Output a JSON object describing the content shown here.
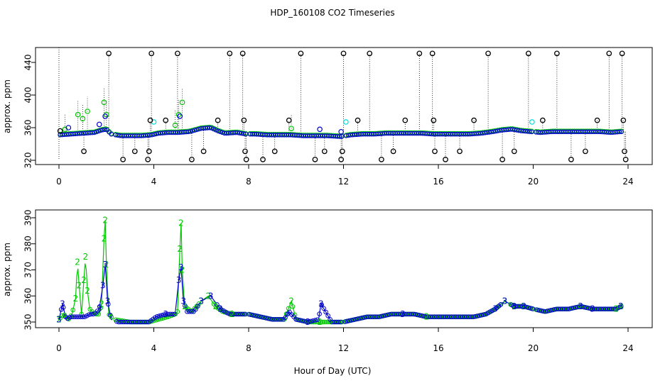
{
  "page": {
    "title": "HDP_160108  CO2 Timeseries",
    "xlabel": "Hour of Day (UTC)"
  },
  "chart_data": [
    {
      "type": "scatter",
      "ylabel": "approx. ppm",
      "xlim": [
        0,
        24
      ],
      "ylim": [
        320,
        450
      ],
      "xticks": [
        0,
        4,
        8,
        12,
        16,
        20,
        24
      ],
      "yticks": [
        320,
        360,
        400,
        440
      ],
      "grid": false,
      "legend": "none",
      "colors": {
        "sensor_1": "#000000",
        "sensor_2": "#00c800",
        "sensor_3": "#0000cc",
        "sensor_4": "#00e0e0"
      },
      "baseline": {
        "x": [
          0.0,
          0.5,
          1.0,
          1.5,
          1.8,
          2.0,
          2.2,
          2.6,
          3.0,
          3.5,
          3.9,
          4.2,
          4.6,
          5.0,
          5.5,
          6.0,
          6.4,
          6.7,
          7.0,
          7.5,
          7.9,
          8.3,
          8.8,
          9.3,
          9.8,
          10.3,
          10.8,
          11.3,
          11.9,
          12.3,
          12.8,
          13.3,
          13.8,
          14.3,
          14.8,
          15.3,
          15.8,
          16.3,
          16.8,
          17.3,
          17.8,
          18.3,
          18.7,
          19.1,
          19.5,
          19.9,
          20.3,
          20.8,
          21.3,
          21.8,
          22.3,
          22.8,
          23.3,
          23.7
        ],
        "y": [
          351,
          352,
          353,
          354,
          357,
          358,
          352,
          350,
          350,
          350,
          351,
          353,
          354,
          354,
          355,
          359,
          360,
          356,
          353,
          354,
          352,
          352,
          351,
          351,
          351,
          350,
          350,
          350,
          349,
          351,
          352,
          352,
          353,
          353,
          353,
          353,
          352,
          352,
          352,
          352,
          353,
          355,
          357,
          358,
          356,
          355,
          354,
          355,
          355,
          355,
          355,
          355,
          354,
          355
        ]
      },
      "sensor_1_points": {
        "x": [
          0.05,
          1.05,
          2.1,
          2.7,
          3.2,
          3.75,
          3.8,
          3.85,
          3.9,
          4.5,
          5.0,
          5.6,
          6.1,
          6.7,
          7.2,
          7.75,
          7.8,
          7.85,
          7.9,
          8.6,
          9.1,
          9.7,
          10.2,
          10.8,
          11.2,
          11.9,
          11.95,
          12.0,
          12.6,
          13.1,
          13.6,
          14.1,
          14.6,
          15.2,
          15.75,
          15.8,
          15.85,
          16.3,
          16.9,
          17.5,
          18.1,
          18.7,
          19.2,
          19.8,
          20.4,
          21.0,
          21.6,
          22.2,
          22.7,
          23.2,
          23.75,
          23.8,
          23.85,
          23.9
        ],
        "y": [
          356,
          331,
          451,
          321,
          331,
          321,
          331,
          369,
          451,
          369,
          451,
          321,
          331,
          369,
          451,
          451,
          369,
          331,
          321,
          321,
          331,
          369,
          451,
          321,
          331,
          321,
          331,
          451,
          369,
          451,
          321,
          331,
          369,
          451,
          451,
          369,
          331,
          321,
          331,
          369,
          451,
          321,
          331,
          451,
          369,
          451,
          321,
          331,
          369,
          451,
          451,
          369,
          331,
          321
        ]
      },
      "sensor_2_points": {
        "x": [
          0.25,
          0.8,
          1.0,
          1.2,
          1.9,
          2.0,
          4.9,
          5.05,
          5.2,
          9.8
        ],
        "y": [
          358,
          376,
          371,
          380,
          391,
          376,
          363,
          376,
          391,
          359
        ]
      },
      "sensor_3_points": {
        "x": [
          0.4,
          1.7,
          1.95,
          5.1,
          11.0,
          11.9
        ],
        "y": [
          360,
          364,
          374,
          374,
          358,
          355
        ]
      },
      "sensor_4_points": {
        "x": [
          4.0,
          12.1,
          19.95
        ],
        "y": [
          367,
          367,
          367
        ]
      }
    },
    {
      "type": "line",
      "ylabel": "approx. ppm",
      "xlim": [
        0,
        24
      ],
      "ylim": [
        348,
        392
      ],
      "xticks": [
        0,
        4,
        8,
        12,
        16,
        20,
        24
      ],
      "yticks": [
        350,
        360,
        370,
        380,
        390
      ],
      "grid": false,
      "legend": "none",
      "colors": {
        "sensor_2": "#00c800",
        "sensor_3": "#0000cc"
      },
      "series": [
        {
          "marker_label": "2",
          "x": [
            0.0,
            0.2,
            0.4,
            0.55,
            0.7,
            0.78,
            0.85,
            0.95,
            1.05,
            1.12,
            1.2,
            1.3,
            1.4,
            1.55,
            1.7,
            1.8,
            1.9,
            1.95,
            2.0,
            2.1,
            2.3,
            3.0,
            3.8,
            4.2,
            4.6,
            4.9,
            5.0,
            5.1,
            5.15,
            5.2,
            5.3,
            5.6,
            6.0,
            6.3,
            6.6,
            6.9,
            7.3,
            7.6,
            8.0,
            8.5,
            9.0,
            9.5,
            9.8,
            10.0,
            10.5,
            11.0,
            11.5,
            12.0,
            12.5,
            13.0,
            13.5,
            14.0,
            14.5,
            15.0,
            15.5,
            15.8,
            16.0,
            16.5,
            17.0,
            17.5,
            18.0,
            18.4,
            18.8,
            19.2,
            19.6,
            20.0,
            20.5,
            21.0,
            21.5,
            22.0,
            22.5,
            23.0,
            23.5,
            23.7
          ],
          "y": [
            351,
            353,
            351,
            353,
            359,
            373,
            364,
            353,
            366,
            375,
            362,
            355,
            354,
            353,
            353,
            357,
            382,
            389,
            372,
            353,
            351,
            350,
            350,
            351,
            352,
            353,
            354,
            378,
            388,
            370,
            356,
            354,
            358,
            360,
            356,
            354,
            353,
            353,
            353,
            352,
            351,
            351,
            358,
            351,
            350,
            350,
            350,
            350,
            351,
            352,
            352,
            353,
            353,
            353,
            352,
            352,
            352,
            352,
            352,
            352,
            353,
            355,
            358,
            356,
            356,
            355,
            354,
            355,
            355,
            356,
            355,
            355,
            355,
            356
          ]
        },
        {
          "marker_label": "3",
          "x": [
            0.0,
            0.15,
            0.3,
            0.5,
            0.7,
            0.9,
            1.1,
            1.3,
            1.5,
            1.7,
            1.85,
            1.95,
            2.05,
            2.2,
            2.5,
            3.0,
            3.8,
            4.1,
            4.5,
            4.9,
            5.05,
            5.15,
            5.25,
            5.4,
            5.7,
            6.0,
            6.4,
            6.8,
            7.2,
            7.6,
            8.0,
            8.5,
            9.0,
            9.5,
            9.7,
            10.0,
            10.5,
            10.95,
            11.05,
            11.5,
            12.0,
            12.5,
            13.0,
            13.5,
            14.0,
            14.5,
            15.0,
            15.5,
            15.8,
            16.0,
            16.5,
            17.0,
            17.5,
            18.0,
            18.4,
            18.8,
            19.2,
            19.6,
            20.0,
            20.5,
            21.0,
            21.5,
            22.0,
            22.5,
            23.0,
            23.5,
            23.7
          ],
          "y": [
            351,
            357,
            351,
            352,
            352,
            352,
            352,
            353,
            353,
            355,
            364,
            372,
            358,
            351,
            350,
            350,
            350,
            352,
            353,
            353,
            366,
            371,
            358,
            354,
            354,
            358,
            360,
            355,
            353,
            353,
            353,
            352,
            351,
            351,
            354,
            351,
            350,
            351,
            357,
            350,
            350,
            351,
            352,
            352,
            353,
            353,
            353,
            352,
            352,
            352,
            352,
            352,
            352,
            353,
            355,
            358,
            356,
            356,
            355,
            354,
            355,
            355,
            356,
            355,
            355,
            355,
            356
          ]
        }
      ]
    }
  ]
}
